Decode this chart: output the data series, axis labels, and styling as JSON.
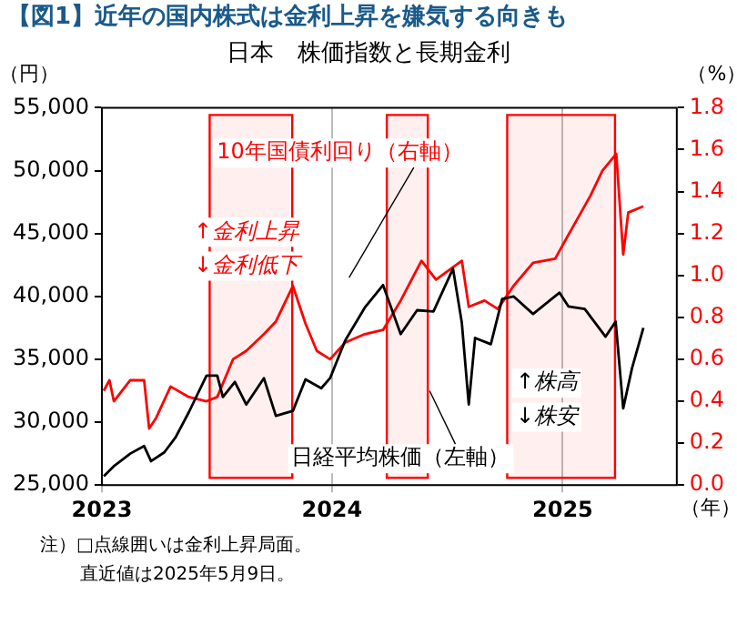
{
  "chart_data": {
    "type": "line",
    "title": "【図1】近年の国内株式は金利上昇を嫌気する向きも",
    "subtitle": "日本　株価指数と長期金利",
    "xlabel": "（年）",
    "ylabel": "（円）",
    "y2label": "（%）",
    "series": [
      {
        "name": "日経平均株価（左軸）",
        "color": "#000000",
        "axis": "y",
        "x": [
          "2023-01-04",
          "2023-01-20",
          "2023-02-15",
          "2023-03-09",
          "2023-03-20",
          "2023-04-10",
          "2023-04-28",
          "2023-05-19",
          "2023-06-16",
          "2023-07-03",
          "2023-07-12",
          "2023-07-31",
          "2023-08-18",
          "2023-09-15",
          "2023-10-04",
          "2023-10-31",
          "2023-11-20",
          "2023-12-15",
          "2023-12-29",
          "2024-01-22",
          "2024-02-22",
          "2024-03-22",
          "2024-04-19",
          "2024-05-15",
          "2024-06-10",
          "2024-07-11",
          "2024-07-25",
          "2024-08-05",
          "2024-08-15",
          "2024-09-09",
          "2024-09-27",
          "2024-10-15",
          "2024-11-15",
          "2024-12-27",
          "2025-01-10",
          "2025-02-05",
          "2025-03-10",
          "2025-03-26",
          "2025-04-07",
          "2025-04-21",
          "2025-05-09"
        ],
        "values": [
          25700,
          26500,
          27500,
          28100,
          26900,
          27600,
          28800,
          30800,
          33700,
          33700,
          32000,
          33200,
          31400,
          33500,
          30500,
          30900,
          33400,
          32700,
          33500,
          36500,
          39100,
          40900,
          37000,
          38900,
          38800,
          42200,
          37900,
          31400,
          36700,
          36200,
          39800,
          40000,
          38600,
          40300,
          39200,
          39000,
          36800,
          38000,
          31100,
          34300,
          37500
        ]
      },
      {
        "name": "10年国債利回り（右軸）",
        "color": "#ff0000",
        "axis": "y2",
        "x": [
          "2023-01-04",
          "2023-01-13",
          "2023-01-20",
          "2023-02-15",
          "2023-03-09",
          "2023-03-17",
          "2023-03-28",
          "2023-04-20",
          "2023-05-19",
          "2023-06-16",
          "2023-07-03",
          "2023-07-28",
          "2023-08-18",
          "2023-09-15",
          "2023-10-04",
          "2023-10-31",
          "2023-11-20",
          "2023-12-08",
          "2023-12-29",
          "2024-01-22",
          "2024-02-22",
          "2024-03-22",
          "2024-04-19",
          "2024-05-22",
          "2024-06-14",
          "2024-07-25",
          "2024-08-05",
          "2024-08-30",
          "2024-09-20",
          "2024-10-15",
          "2024-11-15",
          "2024-12-20",
          "2025-01-15",
          "2025-02-14",
          "2025-03-05",
          "2025-03-27",
          "2025-04-07",
          "2025-04-15",
          "2025-05-09"
        ],
        "values": [
          0.45,
          0.5,
          0.4,
          0.5,
          0.5,
          0.27,
          0.32,
          0.47,
          0.42,
          0.4,
          0.42,
          0.6,
          0.64,
          0.72,
          0.78,
          0.95,
          0.77,
          0.64,
          0.6,
          0.68,
          0.72,
          0.74,
          0.88,
          1.07,
          0.98,
          1.07,
          0.85,
          0.88,
          0.84,
          0.95,
          1.06,
          1.08,
          1.22,
          1.38,
          1.5,
          1.58,
          1.1,
          1.3,
          1.33
        ]
      }
    ],
    "xlim": [
      "2023-01-01",
      "2025-07-01"
    ],
    "xticks": [
      {
        "value": "2023-01-01",
        "label": "2023"
      },
      {
        "value": "2024-01-01",
        "label": "2024"
      },
      {
        "value": "2025-01-01",
        "label": "2025"
      }
    ],
    "ylim": [
      25000,
      55000
    ],
    "yticks": [
      {
        "value": 25000,
        "label": "25,000"
      },
      {
        "value": 30000,
        "label": "30,000"
      },
      {
        "value": 35000,
        "label": "35,000"
      },
      {
        "value": 40000,
        "label": "40,000"
      },
      {
        "value": 45000,
        "label": "45,000"
      },
      {
        "value": 50000,
        "label": "50,000"
      },
      {
        "value": 55000,
        "label": "55,000"
      }
    ],
    "y2lim": [
      0,
      1.8
    ],
    "y2ticks": [
      {
        "value": 0,
        "label": "0.0"
      },
      {
        "value": 0.2,
        "label": "0.2"
      },
      {
        "value": 0.4,
        "label": "0.4"
      },
      {
        "value": 0.6,
        "label": "0.6"
      },
      {
        "value": 0.8,
        "label": "0.8"
      },
      {
        "value": 1,
        "label": "1.0"
      },
      {
        "value": 1.2,
        "label": "1.2"
      },
      {
        "value": 1.4,
        "label": "1.4"
      },
      {
        "value": 1.6,
        "label": "1.6"
      },
      {
        "value": 1.8,
        "label": "1.8"
      }
    ],
    "bands": [
      {
        "axis": "x",
        "from": "2023-06-21",
        "to": "2023-10-30",
        "color": "#ff0000"
      },
      {
        "axis": "x",
        "from": "2024-03-28",
        "to": "2024-06-01",
        "color": "#ff0000"
      },
      {
        "axis": "x",
        "from": "2024-10-05",
        "to": "2025-03-25",
        "color": "#ff0000"
      }
    ],
    "annotations": [
      "↑金利上昇",
      "↓金利低下",
      "↑株高",
      "↓株安",
      "注）□点線囲いは金利上昇局面。",
      "直近値は2025年5月9日。"
    ],
    "grid": "x",
    "legend": false,
    "marker": "none",
    "line_style": "solid"
  }
}
